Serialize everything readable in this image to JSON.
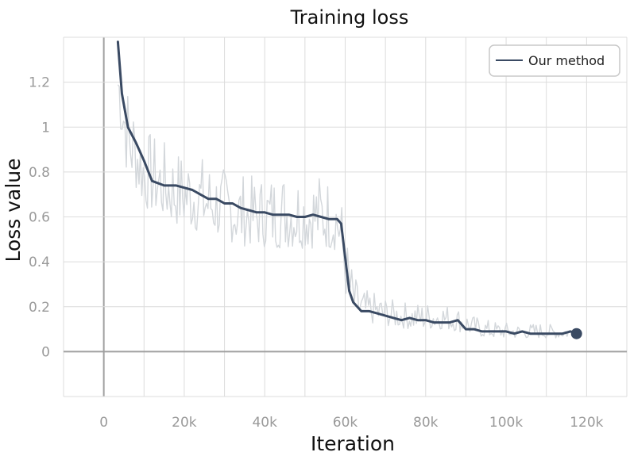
{
  "chart_data": {
    "type": "line",
    "title": "Training loss",
    "xlabel": "Iteration",
    "ylabel": "Loss value",
    "xlim": [
      -10000,
      130000
    ],
    "ylim": [
      -0.2,
      1.4
    ],
    "x_ticks": [
      0,
      20000,
      40000,
      60000,
      80000,
      100000,
      120000
    ],
    "x_tick_labels": [
      "0",
      "20k",
      "40k",
      "60k",
      "80k",
      "100k",
      "120k"
    ],
    "y_ticks": [
      0,
      0.2,
      0.4,
      0.6,
      0.8,
      1.0,
      1.2
    ],
    "y_tick_labels": [
      "0",
      "0.2",
      "0.4",
      "0.6",
      "0.8",
      "1",
      "1.2"
    ],
    "grid": true,
    "legend_position": "top-right",
    "colors": {
      "smoothed": "#3a4a63",
      "raw": "#d3d7db",
      "grid": "#dcdcdc",
      "zero_axis": "#a0a0a0"
    },
    "series": [
      {
        "name": "Our method",
        "x": [
          3500,
          4500,
          6000,
          8000,
          10000,
          12000,
          15000,
          18000,
          20000,
          22000,
          24000,
          26000,
          28000,
          30000,
          32000,
          34000,
          36000,
          38000,
          40000,
          42000,
          44000,
          46000,
          48000,
          50000,
          52000,
          54000,
          56000,
          58000,
          59000,
          60000,
          61000,
          62000,
          64000,
          66000,
          68000,
          70000,
          72000,
          74000,
          76000,
          78000,
          80000,
          82000,
          84000,
          86000,
          88000,
          90000,
          92000,
          94000,
          96000,
          98000,
          100000,
          102000,
          104000,
          106000,
          108000,
          110000,
          112000,
          114000,
          116000,
          117500
        ],
        "y": [
          1.38,
          1.15,
          1.0,
          0.93,
          0.85,
          0.76,
          0.74,
          0.74,
          0.73,
          0.72,
          0.7,
          0.68,
          0.68,
          0.66,
          0.66,
          0.64,
          0.63,
          0.62,
          0.62,
          0.61,
          0.61,
          0.61,
          0.6,
          0.6,
          0.61,
          0.6,
          0.59,
          0.59,
          0.57,
          0.42,
          0.27,
          0.22,
          0.18,
          0.18,
          0.17,
          0.16,
          0.15,
          0.14,
          0.15,
          0.14,
          0.14,
          0.13,
          0.13,
          0.13,
          0.14,
          0.1,
          0.1,
          0.09,
          0.09,
          0.09,
          0.09,
          0.08,
          0.09,
          0.08,
          0.08,
          0.08,
          0.08,
          0.08,
          0.09,
          0.08
        ]
      }
    ],
    "raw_noise_band": {
      "x": [
        3500,
        6000,
        8000,
        10000,
        14000,
        18000,
        22000,
        26000,
        30000,
        34000,
        38000,
        42000,
        46000,
        50000,
        54000,
        58000,
        59000,
        60000,
        62000,
        64000,
        68000,
        72000,
        76000,
        80000,
        84000,
        88000,
        92000,
        96000,
        100000,
        104000,
        108000,
        112000,
        116000
      ],
      "low": [
        1.05,
        0.76,
        0.72,
        0.64,
        0.6,
        0.56,
        0.54,
        0.52,
        0.5,
        0.47,
        0.47,
        0.46,
        0.46,
        0.46,
        0.46,
        0.45,
        0.4,
        0.25,
        0.16,
        0.13,
        0.12,
        0.11,
        0.1,
        0.1,
        0.1,
        0.09,
        0.07,
        0.06,
        0.06,
        0.06,
        0.06,
        0.06,
        0.06
      ],
      "high": [
        1.4,
        1.2,
        1.1,
        1.0,
        0.95,
        0.9,
        0.9,
        0.86,
        0.82,
        0.8,
        0.78,
        0.8,
        0.82,
        0.8,
        0.8,
        0.76,
        0.7,
        0.55,
        0.35,
        0.28,
        0.26,
        0.23,
        0.22,
        0.22,
        0.22,
        0.2,
        0.16,
        0.14,
        0.13,
        0.12,
        0.13,
        0.12,
        0.12
      ]
    },
    "end_marker": {
      "x": 117500,
      "y": 0.08
    }
  }
}
